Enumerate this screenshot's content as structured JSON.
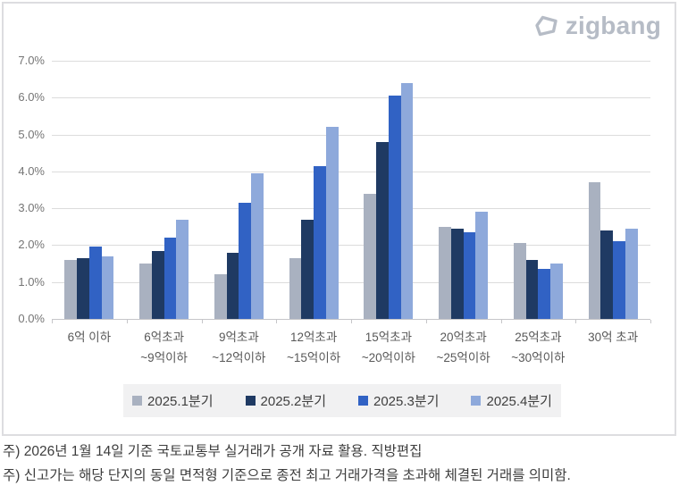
{
  "header": {
    "logo_text": "zigbang",
    "logo_color": "#b6bcc6"
  },
  "chart_data": {
    "type": "bar",
    "title": "",
    "xlabel": "",
    "ylabel": "",
    "ylim": [
      0,
      7
    ],
    "grid": true,
    "legend_position": "bottom",
    "y_ticks": [
      "0.0%",
      "1.0%",
      "2.0%",
      "3.0%",
      "4.0%",
      "5.0%",
      "6.0%",
      "7.0%"
    ],
    "categories": [
      "6억 이하",
      "6억초과\n~9억이하",
      "9억초과\n~12억이하",
      "12억초과\n~15억이하",
      "15억초과\n~20억이하",
      "20억초과\n~25억이하",
      "25억초과\n~30억이하",
      "30억 초과"
    ],
    "series": [
      {
        "name": "2025.1분기",
        "color": "#a9b1c0",
        "values": [
          1.6,
          1.5,
          1.2,
          1.65,
          3.4,
          2.5,
          2.05,
          3.7
        ]
      },
      {
        "name": "2025.2분기",
        "color": "#1f3a63",
        "values": [
          1.65,
          1.85,
          1.8,
          2.7,
          4.8,
          2.45,
          1.6,
          2.4
        ]
      },
      {
        "name": "2025.3분기",
        "color": "#3162c4",
        "values": [
          1.95,
          2.2,
          3.15,
          4.15,
          6.05,
          2.35,
          1.35,
          2.1
        ]
      },
      {
        "name": "2025.4분기",
        "color": "#8ea9db",
        "values": [
          1.7,
          2.7,
          3.95,
          5.2,
          6.4,
          2.9,
          1.5,
          2.45
        ]
      }
    ]
  },
  "footnotes": [
    "주) 2026년 1월 14일 기준 국토교통부 실거래가 공개 자료 활용. 직방편집",
    "주) 신고가는 해당 단지의 동일 면적형 기준으로 종전 최고 거래가격을 초과해 체결된 거래를 의미함."
  ]
}
